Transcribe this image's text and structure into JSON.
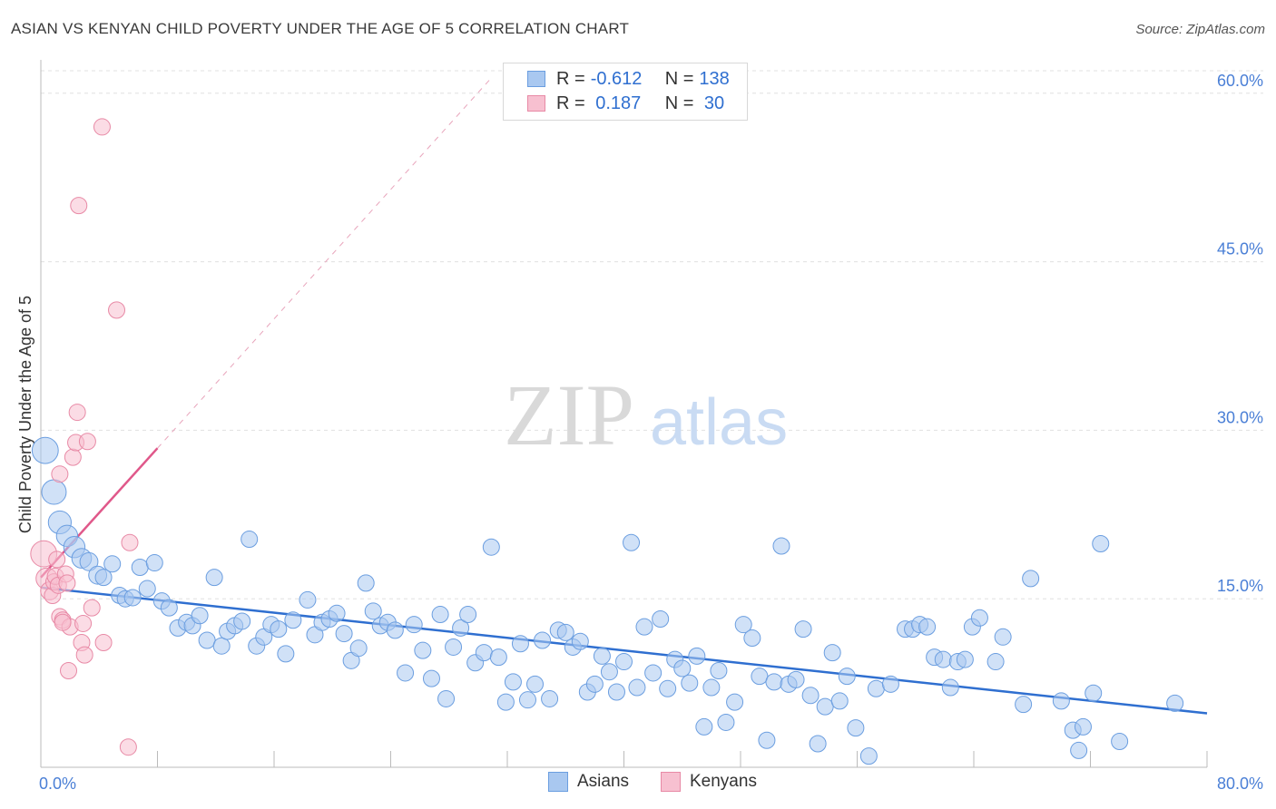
{
  "title": "ASIAN VS KENYAN CHILD POVERTY UNDER THE AGE OF 5 CORRELATION CHART",
  "source": "Source: ZipAtlas.com",
  "watermark": {
    "zip": "ZIP",
    "atlas": "atlas"
  },
  "legend": {
    "rows": [
      {
        "r_label": "R =",
        "r_value": "-0.612",
        "n_label": "N =",
        "n_value": "138",
        "color": "#a9c8f0",
        "border": "#6b9ee0"
      },
      {
        "r_label": "R =",
        "r_value": " 0.187",
        "n_label": "N =",
        "n_value": " 30",
        "color": "#f7c0d0",
        "border": "#e88aa6"
      }
    ]
  },
  "bottom_legend": [
    {
      "label": "Asians",
      "color": "#a9c8f0",
      "border": "#6b9ee0"
    },
    {
      "label": "Kenyans",
      "color": "#f7c0d0",
      "border": "#e88aa6"
    }
  ],
  "chart_data": {
    "type": "scatter",
    "title": "ASIAN VS KENYAN CHILD POVERTY UNDER THE AGE OF 5 CORRELATION CHART",
    "xlabel": "",
    "ylabel": "Child Poverty Under the Age of 5",
    "xlim": [
      0,
      80
    ],
    "ylim": [
      0,
      62
    ],
    "x_tick_labels": [
      "0.0%",
      "80.0%"
    ],
    "y_ticks": [
      15,
      30,
      45,
      60
    ],
    "y_tick_labels": [
      "15.0%",
      "30.0%",
      "45.0%",
      "60.0%"
    ],
    "grid": true,
    "legend_position": "top-center",
    "series": [
      {
        "name": "Asians",
        "color": "#a9c8f0",
        "edge": "#6b9ee0",
        "trend": {
          "x": [
            0,
            80
          ],
          "y": [
            16.0,
            4.8
          ],
          "color": "#2f6fd0"
        },
        "points": [
          [
            0.3,
            28.2,
            1.6
          ],
          [
            0.9,
            24.5,
            1.5
          ],
          [
            1.3,
            21.8,
            1.4
          ],
          [
            1.8,
            20.6,
            1.3
          ],
          [
            2.3,
            19.6,
            1.3
          ],
          [
            2.8,
            18.6,
            1.2
          ],
          [
            3.3,
            18.3,
            1.1
          ],
          [
            3.9,
            17.1,
            1.1
          ],
          [
            4.3,
            16.9,
            1.0
          ],
          [
            4.9,
            18.1,
            1.0
          ],
          [
            5.4,
            15.3,
            1.0
          ],
          [
            5.8,
            15.0,
            1.0
          ],
          [
            6.3,
            15.1,
            1.0
          ],
          [
            6.8,
            17.8,
            1.0
          ],
          [
            7.3,
            15.9,
            1.0
          ],
          [
            7.8,
            18.2,
            1.0
          ],
          [
            8.3,
            14.8,
            1.0
          ],
          [
            8.8,
            14.2,
            1.0
          ],
          [
            9.4,
            12.4,
            1.0
          ],
          [
            10.0,
            12.9,
            1.0
          ],
          [
            10.4,
            12.6,
            1.0
          ],
          [
            10.9,
            13.5,
            1.0
          ],
          [
            11.4,
            11.3,
            1.0
          ],
          [
            11.9,
            16.9,
            1.0
          ],
          [
            12.4,
            10.8,
            1.0
          ],
          [
            12.8,
            12.1,
            1.0
          ],
          [
            13.3,
            12.6,
            1.0
          ],
          [
            13.8,
            13.0,
            1.0
          ],
          [
            14.3,
            20.3,
            1.0
          ],
          [
            14.8,
            10.8,
            1.0
          ],
          [
            15.3,
            11.6,
            1.0
          ],
          [
            15.8,
            12.7,
            1.0
          ],
          [
            16.3,
            12.3,
            1.0
          ],
          [
            16.8,
            10.1,
            1.0
          ],
          [
            17.3,
            13.1,
            1.0
          ],
          [
            18.3,
            14.9,
            1.0
          ],
          [
            18.8,
            11.8,
            1.0
          ],
          [
            19.3,
            12.9,
            1.0
          ],
          [
            19.8,
            13.2,
            1.0
          ],
          [
            20.3,
            13.7,
            1.0
          ],
          [
            20.8,
            11.9,
            1.0
          ],
          [
            21.3,
            9.5,
            1.0
          ],
          [
            21.8,
            10.6,
            1.0
          ],
          [
            22.3,
            16.4,
            1.0
          ],
          [
            22.8,
            13.9,
            1.0
          ],
          [
            23.3,
            12.6,
            1.0
          ],
          [
            23.8,
            12.9,
            1.0
          ],
          [
            24.3,
            12.2,
            1.0
          ],
          [
            25.0,
            8.4,
            1.0
          ],
          [
            25.6,
            12.7,
            1.0
          ],
          [
            26.2,
            10.4,
            1.0
          ],
          [
            26.8,
            7.9,
            1.0
          ],
          [
            27.4,
            13.6,
            1.0
          ],
          [
            27.8,
            6.1,
            1.0
          ],
          [
            28.3,
            10.7,
            1.0
          ],
          [
            28.8,
            12.4,
            1.0
          ],
          [
            29.3,
            13.6,
            1.0
          ],
          [
            29.8,
            9.3,
            1.0
          ],
          [
            30.4,
            10.2,
            1.0
          ],
          [
            30.9,
            19.6,
            1.0
          ],
          [
            31.4,
            9.8,
            1.0
          ],
          [
            31.9,
            5.8,
            1.0
          ],
          [
            32.4,
            7.6,
            1.0
          ],
          [
            32.9,
            11.0,
            1.0
          ],
          [
            33.4,
            6.0,
            1.0
          ],
          [
            33.9,
            7.4,
            1.0
          ],
          [
            34.4,
            11.3,
            1.0
          ],
          [
            34.9,
            6.1,
            1.0
          ],
          [
            35.5,
            12.2,
            1.0
          ],
          [
            36.0,
            12.0,
            1.0
          ],
          [
            36.5,
            10.7,
            1.0
          ],
          [
            37.0,
            11.2,
            1.0
          ],
          [
            37.5,
            6.7,
            1.0
          ],
          [
            38.0,
            7.4,
            1.0
          ],
          [
            38.5,
            9.9,
            1.0
          ],
          [
            39.0,
            8.5,
            1.0
          ],
          [
            39.5,
            6.7,
            1.0
          ],
          [
            40.0,
            9.4,
            1.0
          ],
          [
            40.5,
            20.0,
            1.0
          ],
          [
            40.9,
            7.1,
            1.0
          ],
          [
            41.4,
            12.5,
            1.0
          ],
          [
            42.0,
            8.4,
            1.0
          ],
          [
            42.5,
            13.2,
            1.0
          ],
          [
            43.0,
            7.0,
            1.0
          ],
          [
            43.5,
            9.6,
            1.0
          ],
          [
            44.0,
            8.8,
            1.0
          ],
          [
            44.5,
            7.5,
            1.0
          ],
          [
            45.0,
            9.9,
            1.0
          ],
          [
            45.5,
            3.6,
            1.0
          ],
          [
            46.0,
            7.1,
            1.0
          ],
          [
            46.5,
            8.6,
            1.0
          ],
          [
            47.0,
            4.0,
            1.0
          ],
          [
            47.6,
            5.8,
            1.0
          ],
          [
            48.2,
            12.7,
            1.0
          ],
          [
            48.8,
            11.5,
            1.0
          ],
          [
            49.3,
            8.1,
            1.0
          ],
          [
            49.8,
            2.4,
            1.0
          ],
          [
            50.3,
            7.6,
            1.0
          ],
          [
            50.8,
            19.7,
            1.0
          ],
          [
            51.3,
            7.4,
            1.0
          ],
          [
            51.8,
            7.8,
            1.0
          ],
          [
            52.3,
            12.3,
            1.0
          ],
          [
            52.8,
            6.4,
            1.0
          ],
          [
            53.3,
            2.1,
            1.0
          ],
          [
            53.8,
            5.4,
            1.0
          ],
          [
            54.3,
            10.2,
            1.0
          ],
          [
            54.8,
            5.9,
            1.0
          ],
          [
            55.3,
            8.1,
            1.0
          ],
          [
            55.9,
            3.5,
            1.0
          ],
          [
            56.8,
            1.0,
            1.0
          ],
          [
            57.3,
            7.0,
            1.0
          ],
          [
            58.3,
            7.4,
            1.0
          ],
          [
            59.3,
            12.3,
            1.0
          ],
          [
            59.8,
            12.3,
            1.0
          ],
          [
            60.3,
            12.7,
            1.0
          ],
          [
            60.8,
            12.5,
            1.0
          ],
          [
            61.3,
            9.8,
            1.0
          ],
          [
            61.9,
            9.6,
            1.0
          ],
          [
            62.4,
            7.1,
            1.0
          ],
          [
            62.9,
            9.4,
            1.0
          ],
          [
            63.4,
            9.6,
            1.0
          ],
          [
            63.9,
            12.5,
            1.0
          ],
          [
            64.4,
            13.3,
            1.0
          ],
          [
            65.5,
            9.4,
            1.0
          ],
          [
            66.0,
            11.6,
            1.0
          ],
          [
            67.4,
            5.6,
            1.0
          ],
          [
            67.9,
            16.8,
            1.0
          ],
          [
            70.0,
            5.9,
            1.0
          ],
          [
            70.8,
            3.3,
            1.0
          ],
          [
            71.5,
            3.6,
            1.0
          ],
          [
            72.2,
            6.6,
            1.0
          ],
          [
            71.2,
            1.5,
            1.0
          ],
          [
            72.7,
            19.9,
            1.0
          ],
          [
            74.0,
            2.3,
            1.0
          ],
          [
            77.8,
            5.7,
            1.0
          ],
          [
            65.0,
            19.6,
            0.0
          ]
        ]
      },
      {
        "name": "Kenyans",
        "color": "#f7c0d0",
        "edge": "#e88aa6",
        "trend": {
          "x": [
            0,
            8
          ],
          "y": [
            16.9,
            28.4
          ],
          "color": "#e0588a",
          "dash_to": [
            31,
            61.5
          ]
        },
        "points": [
          [
            0.2,
            19.0,
            1.6
          ],
          [
            0.4,
            16.8,
            1.3
          ],
          [
            0.6,
            15.7,
            1.1
          ],
          [
            0.8,
            15.3,
            1.0
          ],
          [
            0.9,
            16.5,
            1.0
          ],
          [
            1.0,
            17.0,
            1.0
          ],
          [
            1.1,
            18.5,
            1.0
          ],
          [
            1.2,
            16.2,
            1.0
          ],
          [
            1.3,
            13.4,
            1.0
          ],
          [
            1.5,
            13.1,
            1.0
          ],
          [
            1.7,
            17.2,
            1.0
          ],
          [
            1.8,
            16.4,
            1.0
          ],
          [
            1.9,
            8.6,
            1.0
          ],
          [
            2.0,
            12.5,
            1.0
          ],
          [
            2.2,
            27.6,
            1.0
          ],
          [
            2.4,
            28.9,
            1.0
          ],
          [
            2.5,
            31.6,
            1.0
          ],
          [
            2.6,
            50.0,
            1.0
          ],
          [
            2.8,
            11.1,
            1.0
          ],
          [
            3.0,
            10.0,
            1.0
          ],
          [
            3.2,
            29.0,
            1.0
          ],
          [
            3.5,
            14.2,
            1.0
          ],
          [
            1.3,
            26.1,
            1.0
          ],
          [
            4.2,
            57.0,
            1.0
          ],
          [
            4.3,
            11.1,
            1.0
          ],
          [
            5.2,
            40.7,
            1.0
          ],
          [
            6.1,
            20.0,
            1.0
          ],
          [
            6.0,
            1.8,
            1.0
          ],
          [
            2.9,
            12.8,
            1.0
          ],
          [
            1.5,
            12.9,
            1.0
          ]
        ]
      }
    ]
  }
}
